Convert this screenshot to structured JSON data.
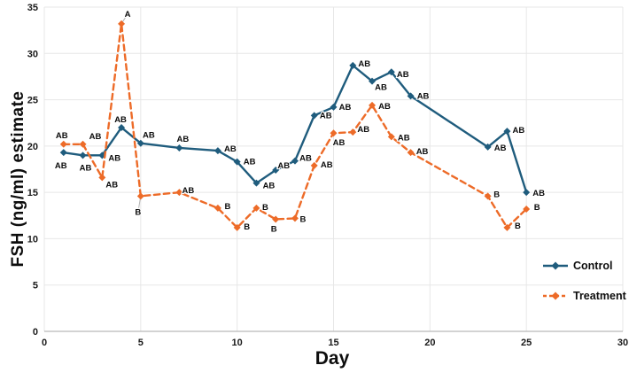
{
  "chart_data": {
    "type": "line",
    "title": "",
    "xlabel": "Day",
    "ylabel": "FSH (ng/ml) estimate",
    "xlim": [
      0,
      30
    ],
    "ylim": [
      0,
      35
    ],
    "x_ticks": [
      0,
      5,
      10,
      15,
      20,
      25,
      30
    ],
    "y_ticks": [
      0,
      5,
      10,
      15,
      20,
      25,
      30,
      35
    ],
    "grid": true,
    "grid_color": "#e7e7e7",
    "axis_color": "#b9b9b9",
    "legend_position": "right-middle",
    "series": [
      {
        "name": "Control",
        "color": "#1f5c7d",
        "line_style": "solid",
        "marker": "diamond",
        "points": [
          {
            "x": 1,
            "y": 19.3,
            "label": "AB",
            "dx": -3,
            "dy": 15
          },
          {
            "x": 2,
            "y": 19.0,
            "label": "AB",
            "dx": 3,
            "dy": 14
          },
          {
            "x": 3,
            "y": 19.0,
            "label": "AB",
            "dx": 14,
            "dy": 3
          },
          {
            "x": 4,
            "y": 22.0,
            "label": "AB",
            "dx": -1,
            "dy": -9
          },
          {
            "x": 5,
            "y": 20.3,
            "label": "AB",
            "dx": 9,
            "dy": -9
          },
          {
            "x": 7,
            "y": 19.8,
            "label": "AB",
            "dx": 4,
            "dy": -10
          },
          {
            "x": 9,
            "y": 19.5,
            "label": "AB",
            "dx": 14,
            "dy": -2
          },
          {
            "x": 10,
            "y": 18.3,
            "label": "AB",
            "dx": 14,
            "dy": 0
          },
          {
            "x": 11,
            "y": 16.0,
            "label": "AB",
            "dx": 14,
            "dy": 3
          },
          {
            "x": 12,
            "y": 17.4,
            "label": "AB",
            "dx": 9,
            "dy": -5
          },
          {
            "x": 13,
            "y": 18.4,
            "label": "AB",
            "dx": 12,
            "dy": -3
          },
          {
            "x": 14,
            "y": 23.3,
            "label": "AB",
            "dx": 13,
            "dy": 0
          },
          {
            "x": 15,
            "y": 24.2,
            "label": "AB",
            "dx": 13,
            "dy": 0
          },
          {
            "x": 16,
            "y": 28.7,
            "label": "AB",
            "dx": 13,
            "dy": -2
          },
          {
            "x": 17,
            "y": 27.0,
            "label": "AB",
            "dx": 10,
            "dy": 7
          },
          {
            "x": 18,
            "y": 28.0,
            "label": "AB",
            "dx": 13,
            "dy": 3
          },
          {
            "x": 19,
            "y": 25.4,
            "label": "AB",
            "dx": 14,
            "dy": 0
          },
          {
            "x": 23,
            "y": 19.9,
            "label": "AB",
            "dx": 14,
            "dy": 1
          },
          {
            "x": 24,
            "y": 21.6,
            "label": "AB",
            "dx": 13,
            "dy": -1
          },
          {
            "x": 25,
            "y": 15.0,
            "label": "AB",
            "dx": 14,
            "dy": 1
          }
        ]
      },
      {
        "name": "Treatment",
        "color": "#ed6b28",
        "line_style": "dashed",
        "marker": "diamond",
        "points": [
          {
            "x": 1,
            "y": 20.2,
            "label": "AB",
            "dx": -2,
            "dy": -10
          },
          {
            "x": 2,
            "y": 20.2,
            "label": "AB",
            "dx": 14,
            "dy": -9
          },
          {
            "x": 3,
            "y": 16.6,
            "label": "AB",
            "dx": 11,
            "dy": 8
          },
          {
            "x": 4,
            "y": 33.2,
            "label": "A",
            "dx": 7,
            "dy": -11,
            "leader": true
          },
          {
            "x": 5,
            "y": 14.6,
            "label": "B",
            "dx": -3,
            "dy": 18,
            "leader": true
          },
          {
            "x": 7,
            "y": 15.0,
            "label": "AB",
            "dx": 10,
            "dy": -2
          },
          {
            "x": 9,
            "y": 13.3,
            "label": "B",
            "dx": 11,
            "dy": -2
          },
          {
            "x": 10,
            "y": 11.2,
            "label": "B",
            "dx": 11,
            "dy": -1
          },
          {
            "x": 11,
            "y": 13.3,
            "label": "B",
            "dx": 10,
            "dy": -1
          },
          {
            "x": 12,
            "y": 12.1,
            "label": "B",
            "dx": -2,
            "dy": 11
          },
          {
            "x": 13,
            "y": 12.2,
            "label": "B",
            "dx": 9,
            "dy": 1
          },
          {
            "x": 14,
            "y": 17.9,
            "label": "AB",
            "dx": 14,
            "dy": -1
          },
          {
            "x": 15,
            "y": 21.4,
            "label": "AB",
            "dx": 6,
            "dy": 11
          },
          {
            "x": 16,
            "y": 21.5,
            "label": "AB",
            "dx": 12,
            "dy": -3
          },
          {
            "x": 17,
            "y": 24.4,
            "label": "AB",
            "dx": 14,
            "dy": 1
          },
          {
            "x": 18,
            "y": 21.0,
            "label": "AB",
            "dx": 14,
            "dy": 1
          },
          {
            "x": 19,
            "y": 19.3,
            "label": "AB",
            "dx": 13,
            "dy": -1
          },
          {
            "x": 23,
            "y": 14.6,
            "label": "B",
            "dx": 10,
            "dy": -2
          },
          {
            "x": 24,
            "y": 11.2,
            "label": "B",
            "dx": 12,
            "dy": -2
          },
          {
            "x": 25,
            "y": 13.2,
            "label": "B",
            "dx": 12,
            "dy": -2
          }
        ]
      }
    ]
  }
}
